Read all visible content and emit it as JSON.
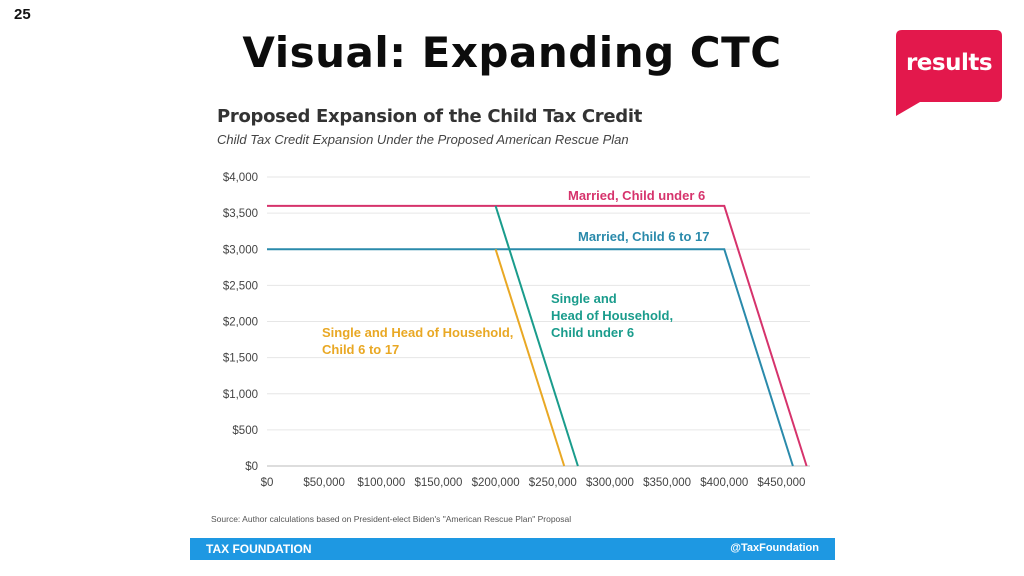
{
  "slide": {
    "number": "25",
    "title": "Visual: Expanding CTC",
    "logo_text": "results",
    "logo_color": "#e3184c"
  },
  "chart_data": {
    "type": "line",
    "title": "Proposed Expansion of the Child Tax Credit",
    "subtitle": "Child Tax Credit Expansion Under the Proposed American Rescue Plan",
    "xlim": [
      0,
      475000
    ],
    "ylim": [
      0,
      4000
    ],
    "x_ticks": [
      0,
      50000,
      100000,
      150000,
      200000,
      250000,
      300000,
      350000,
      400000,
      450000
    ],
    "x_tick_labels": [
      "$0",
      "$50,000",
      "$100,000",
      "$150,000",
      "$200,000",
      "$250,000",
      "$300,000",
      "$350,000",
      "$400,000",
      "$450,000"
    ],
    "y_ticks": [
      0,
      500,
      1000,
      1500,
      2000,
      2500,
      3000,
      3500,
      4000
    ],
    "y_tick_labels": [
      "$0",
      "$500",
      "$1,000",
      "$1,500",
      "$2,000",
      "$2,500",
      "$3,000",
      "$3,500",
      "$4,000"
    ],
    "grid": true,
    "series": [
      {
        "name": "Married,  Child under 6",
        "label_lines": [
          "Married,  Child under 6"
        ],
        "color": "#d6336c",
        "points": [
          [
            0,
            3600
          ],
          [
            400000,
            3600
          ],
          [
            472000,
            0
          ]
        ]
      },
      {
        "name": "Married, Child 6 to 17",
        "label_lines": [
          "Married, Child 6 to 17"
        ],
        "color": "#2a8aab",
        "points": [
          [
            0,
            3000
          ],
          [
            400000,
            3000
          ],
          [
            460000,
            0
          ]
        ]
      },
      {
        "name": "Single and Head of Household, Child under 6",
        "label_lines": [
          "Single and",
          "Head of Household,",
          "Child under 6"
        ],
        "color": "#1a9c8c",
        "points": [
          [
            200000,
            3600
          ],
          [
            272000,
            0
          ]
        ]
      },
      {
        "name": "Single and Head of Household, Child 6 to 17",
        "label_lines": [
          "Single and Head of Household,",
          "Child 6 to 17"
        ],
        "color": "#e9a824",
        "points": [
          [
            200000,
            3000
          ],
          [
            260000,
            0
          ]
        ]
      }
    ],
    "source": "Source: Author calculations based on President-elect Biden's \"American Rescue Plan\" Proposal"
  },
  "footer": {
    "left": "TAX FOUNDATION",
    "right": "@TaxFoundation",
    "color": "#1e98e2"
  }
}
